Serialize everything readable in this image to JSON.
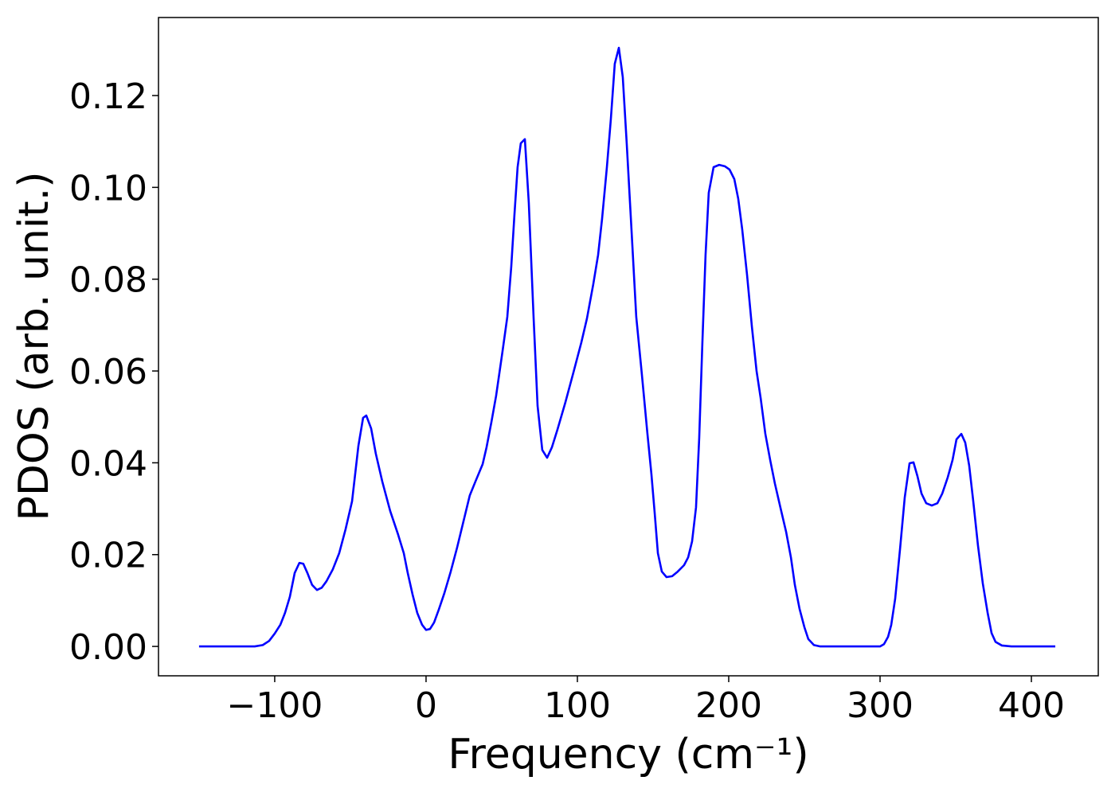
{
  "chart_data": {
    "type": "line",
    "xlabel": "Frequency (cm⁻¹)",
    "ylabel": "PDOS (arb. unit.)",
    "xlim": [
      -176.8,
      444.2
    ],
    "ylim": [
      -0.0064,
      0.137
    ],
    "xticks": [
      {
        "value": -100,
        "label": "−100"
      },
      0,
      100,
      200,
      300,
      400
    ],
    "yticks": [
      {
        "value": 0,
        "label": "0.00"
      },
      {
        "value": 0.02,
        "label": "0.02"
      },
      {
        "value": 0.04,
        "label": "0.04"
      },
      {
        "value": 0.06,
        "label": "0.06"
      },
      {
        "value": 0.08,
        "label": "0.08"
      },
      {
        "value": 0.1,
        "label": "0.10"
      },
      {
        "value": 0.12,
        "label": "0.12"
      }
    ],
    "x": [
      -150.0,
      -113.2,
      -107.9,
      -103.7,
      -100.0,
      -96.3,
      -93.2,
      -90.0,
      -86.8,
      -83.7,
      -81.1,
      -78.4,
      -75.3,
      -72.1,
      -68.9,
      -65.8,
      -61.6,
      -57.4,
      -53.2,
      -48.9,
      -44.7,
      -41.6,
      -39.5,
      -36.3,
      -33.2,
      -28.9,
      -23.7,
      -18.4,
      -14.7,
      -12.1,
      -8.9,
      -5.8,
      -2.6,
      0.0,
      2.6,
      5.3,
      8.4,
      12.1,
      16.3,
      20.5,
      24.7,
      28.9,
      32.6,
      37.4,
      40.0,
      43.2,
      46.3,
      50.5,
      53.7,
      56.3,
      58.4,
      60.5,
      62.6,
      65.3,
      67.9,
      71.1,
      73.7,
      76.8,
      80.0,
      83.2,
      86.8,
      92.1,
      97.4,
      102.6,
      106.3,
      110.5,
      113.7,
      116.3,
      119.5,
      122.1,
      124.7,
      127.4,
      130.0,
      132.6,
      135.8,
      138.9,
      142.6,
      146.3,
      148.9,
      151.1,
      153.2,
      155.8,
      158.9,
      162.6,
      166.3,
      170.5,
      173.2,
      175.8,
      178.4,
      180.5,
      182.6,
      184.7,
      186.8,
      190.0,
      193.7,
      197.4,
      200.5,
      203.7,
      206.3,
      208.9,
      212.1,
      215.3,
      218.4,
      221.1,
      224.2,
      227.4,
      230.5,
      234.2,
      237.9,
      241.1,
      243.7,
      246.8,
      250.0,
      252.6,
      256.3,
      260.5,
      300.0,
      302.6,
      305.3,
      307.4,
      310.0,
      313.2,
      316.3,
      319.5,
      322.1,
      324.7,
      327.4,
      330.5,
      334.2,
      337.9,
      341.1,
      344.7,
      347.9,
      350.5,
      353.7,
      356.3,
      358.9,
      361.6,
      364.7,
      367.9,
      371.1,
      373.7,
      376.3,
      380.5,
      386.8,
      415.8
    ],
    "series": [
      {
        "name": "PDOS",
        "color": "#0000ff",
        "values": [
          0,
          0,
          0.0003,
          0.0012,
          0.0028,
          0.0047,
          0.0073,
          0.0108,
          0.016,
          0.0182,
          0.018,
          0.016,
          0.0134,
          0.0123,
          0.0128,
          0.0142,
          0.0168,
          0.0203,
          0.0255,
          0.0316,
          0.0437,
          0.0498,
          0.0503,
          0.0475,
          0.042,
          0.0359,
          0.0295,
          0.0243,
          0.0203,
          0.016,
          0.0113,
          0.0073,
          0.0047,
          0.0036,
          0.0038,
          0.0052,
          0.008,
          0.0116,
          0.0163,
          0.0215,
          0.0272,
          0.0329,
          0.0359,
          0.0397,
          0.0434,
          0.0489,
          0.0546,
          0.0642,
          0.0718,
          0.0827,
          0.094,
          0.1044,
          0.1096,
          0.1105,
          0.0966,
          0.0714,
          0.0524,
          0.0428,
          0.0411,
          0.0434,
          0.0472,
          0.0532,
          0.0597,
          0.0662,
          0.0714,
          0.0789,
          0.0853,
          0.0931,
          0.1044,
          0.1148,
          0.1269,
          0.1304,
          0.124,
          0.1096,
          0.0905,
          0.0718,
          0.0593,
          0.0463,
          0.0376,
          0.029,
          0.0203,
          0.0163,
          0.0151,
          0.0153,
          0.0163,
          0.0177,
          0.0194,
          0.0229,
          0.0303,
          0.0454,
          0.0662,
          0.0853,
          0.0988,
          0.1044,
          0.1049,
          0.1046,
          0.1039,
          0.1018,
          0.0975,
          0.0909,
          0.081,
          0.0697,
          0.06,
          0.0541,
          0.0463,
          0.0406,
          0.0355,
          0.0302,
          0.025,
          0.0194,
          0.0134,
          0.0082,
          0.0042,
          0.0016,
          0.0003,
          0,
          0,
          0.0005,
          0.0021,
          0.0047,
          0.0104,
          0.0212,
          0.0324,
          0.0399,
          0.0401,
          0.0371,
          0.0333,
          0.0312,
          0.0307,
          0.0312,
          0.0333,
          0.0368,
          0.0406,
          0.0451,
          0.0463,
          0.0444,
          0.0394,
          0.0316,
          0.022,
          0.0137,
          0.0073,
          0.0029,
          0.001,
          0.0002,
          0,
          0
        ]
      }
    ]
  }
}
